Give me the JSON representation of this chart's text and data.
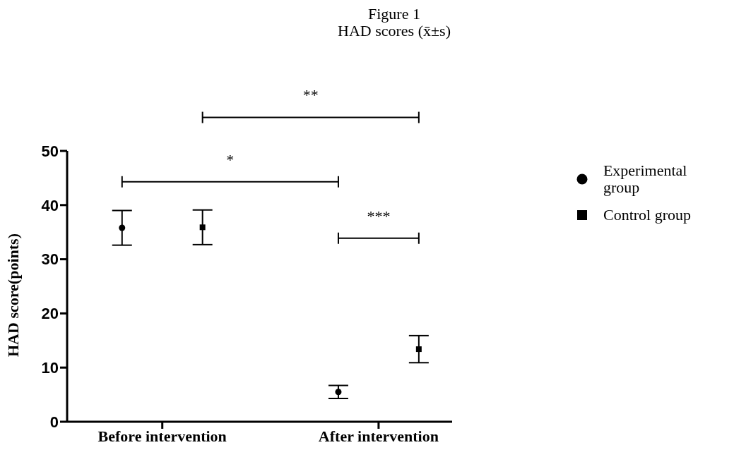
{
  "chart_data": {
    "type": "scatter",
    "title": "Figure 1",
    "subtitle": "HAD scores (x̄±s)",
    "ylabel": "HAD score(points)",
    "categories": [
      "Before intervention",
      "After intervention"
    ],
    "series": [
      {
        "name": "Experimental group",
        "color": "#000000",
        "marker": "circle",
        "values": [
          35.8,
          5.5
        ],
        "errors": [
          3.2,
          1.2
        ]
      },
      {
        "name": "Control group",
        "color": "#000000",
        "marker": "square",
        "values": [
          35.9,
          13.4
        ],
        "errors": [
          3.2,
          2.5
        ]
      }
    ],
    "ylim": [
      0,
      50
    ],
    "yticks": [
      0,
      10,
      20,
      30,
      40,
      50
    ],
    "grid": false,
    "legend": "right",
    "annotations": [
      "*",
      "**",
      "***"
    ]
  }
}
